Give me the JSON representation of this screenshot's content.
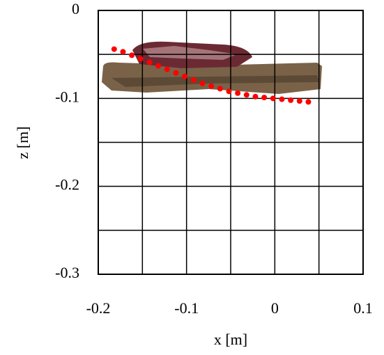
{
  "chart_data": {
    "type": "scatter",
    "x_label": "x [m]",
    "y_label": "z [m]",
    "xlim": [
      -0.2,
      0.1
    ],
    "ylim": [
      -0.3,
      0
    ],
    "xticks": [
      -0.2,
      -0.1,
      0,
      0.1
    ],
    "yticks": [
      0,
      -0.1,
      -0.2,
      -0.3
    ],
    "minor_xticks": [
      -0.15,
      -0.05,
      0.05
    ],
    "minor_yticks": [
      -0.05,
      -0.15,
      -0.25
    ],
    "grid": true,
    "color": "#ff0000",
    "x": [
      -0.182,
      -0.172,
      -0.162,
      -0.152,
      -0.142,
      -0.132,
      -0.122,
      -0.112,
      -0.102,
      -0.092,
      -0.082,
      -0.072,
      -0.062,
      -0.052,
      -0.042,
      -0.032,
      -0.022,
      -0.012,
      -0.002,
      0.008,
      0.018,
      0.028,
      0.038
    ],
    "values": [
      -0.044,
      -0.047,
      -0.051,
      -0.055,
      -0.059,
      -0.063,
      -0.067,
      -0.071,
      -0.075,
      -0.079,
      -0.083,
      -0.086,
      -0.089,
      -0.092,
      -0.094,
      -0.096,
      -0.098,
      -0.099,
      -0.1,
      -0.101,
      -0.102,
      -0.103,
      -0.104
    ]
  }
}
